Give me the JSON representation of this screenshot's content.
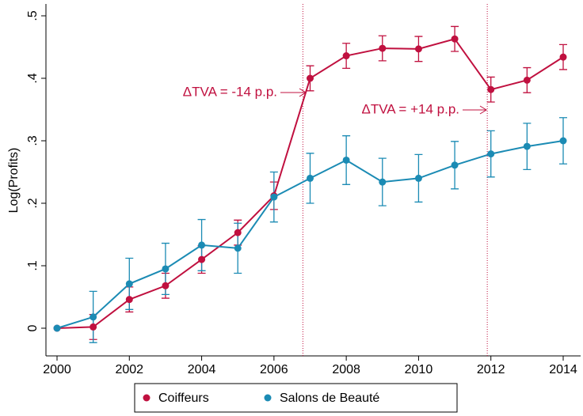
{
  "chart_data": {
    "type": "line",
    "y_label": "Log(Profits)",
    "x": [
      2000,
      2001,
      2002,
      2003,
      2004,
      2005,
      2006,
      2007,
      2008,
      2009,
      2010,
      2011,
      2012,
      2013,
      2014
    ],
    "series": [
      {
        "name": "Coiffeurs",
        "color": "#c0103f",
        "values": [
          0,
          0.002,
          0.046,
          0.068,
          0.11,
          0.153,
          0.212,
          0.4,
          0.436,
          0.448,
          0.447,
          0.463,
          0.382,
          0.397,
          0.434
        ],
        "errors": [
          0,
          0.02,
          0.02,
          0.02,
          0.022,
          0.02,
          0.022,
          0.02,
          0.02,
          0.02,
          0.02,
          0.02,
          0.02,
          0.02,
          0.02
        ]
      },
      {
        "name": "Salons de Beauté",
        "color": "#1b8bb4",
        "values": [
          0,
          0.018,
          0.071,
          0.095,
          0.133,
          0.128,
          0.21,
          0.24,
          0.269,
          0.234,
          0.24,
          0.261,
          0.279,
          0.291,
          0.3
        ],
        "errors": [
          0,
          0.041,
          0.041,
          0.041,
          0.041,
          0.04,
          0.04,
          0.04,
          0.039,
          0.038,
          0.038,
          0.038,
          0.037,
          0.037,
          0.037
        ]
      }
    ],
    "xlim": [
      2000,
      2014
    ],
    "xticks": [
      2000,
      2002,
      2004,
      2006,
      2008,
      2010,
      2012,
      2014
    ],
    "ylim": [
      0,
      0.5
    ],
    "yticks": [
      0,
      {
        "value": 0.1,
        "label": ".1"
      },
      {
        "value": 0.2,
        "label": ".2"
      },
      {
        "value": 0.3,
        "label": ".3"
      },
      {
        "value": 0.4,
        "label": ".4"
      },
      {
        "value": 0.5,
        "label": ".5"
      }
    ],
    "vlines": [
      2006.8,
      2011.9
    ],
    "annotations": [
      "ΔTVA = -14 p.p.",
      "ΔTVA = +14 p.p."
    ],
    "legend": "bottom"
  }
}
